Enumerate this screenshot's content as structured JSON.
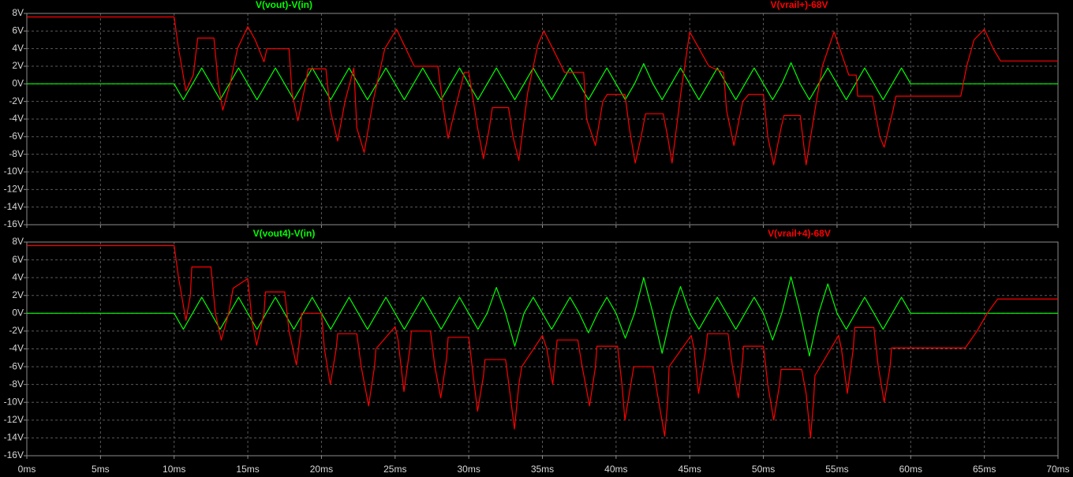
{
  "chart_data": [
    {
      "type": "line",
      "xlim": [
        0,
        70
      ],
      "ylim": [
        -16,
        8
      ],
      "xticks": [
        0,
        5,
        10,
        15,
        20,
        25,
        30,
        35,
        40,
        45,
        50,
        55,
        60,
        65,
        70
      ],
      "yticks": [
        {
          "value": 8,
          "label": "8V"
        },
        {
          "value": 6,
          "label": "6V"
        },
        {
          "value": 4,
          "label": "4V"
        },
        {
          "value": 2,
          "label": "2V"
        },
        {
          "value": 0,
          "label": "0V"
        },
        {
          "value": -2,
          "label": "-2V"
        },
        {
          "value": -4,
          "label": "-4V"
        },
        {
          "value": -6,
          "label": "-6V"
        },
        {
          "value": -8,
          "label": "-8V"
        },
        {
          "value": -10,
          "label": "-10V"
        },
        {
          "value": -12,
          "label": "-12V"
        },
        {
          "value": -14,
          "label": "-14V"
        },
        {
          "value": -16,
          "label": "-16V"
        }
      ],
      "grid": true,
      "series": [
        {
          "name": "V(vout)-V(in)",
          "color": "#00ff00",
          "x": [
            0,
            10,
            10.625,
            11.25,
            11.875,
            12.5,
            13.125,
            13.75,
            14.375,
            15,
            15.625,
            16.25,
            16.875,
            17.5,
            18.125,
            18.75,
            19.375,
            20,
            20.625,
            21.25,
            21.875,
            22.5,
            23.125,
            23.75,
            24.375,
            25,
            25.625,
            26.25,
            26.875,
            27.5,
            28.125,
            28.75,
            29.375,
            30,
            30.625,
            31.25,
            31.875,
            32.5,
            33.125,
            33.75,
            34.375,
            35,
            35.625,
            36.25,
            36.875,
            37.5,
            38.125,
            38.75,
            39.375,
            40,
            40.625,
            41.25,
            41.875,
            42.5,
            43.125,
            43.75,
            44.375,
            45,
            45.625,
            46.25,
            46.875,
            47.5,
            48.125,
            48.75,
            49.375,
            50,
            50.625,
            51.25,
            51.875,
            52.5,
            53.125,
            53.75,
            54.375,
            55,
            55.625,
            56.25,
            56.875,
            57.5,
            58.125,
            58.75,
            59.375,
            60,
            70
          ],
          "values": [
            0,
            0,
            -1.8,
            0,
            1.8,
            0,
            -1.8,
            0,
            1.8,
            0,
            -1.8,
            0,
            1.8,
            0,
            -1.8,
            0,
            1.8,
            0,
            -1.8,
            0,
            1.8,
            0,
            -1.8,
            0,
            1.8,
            0,
            -1.8,
            0,
            1.8,
            0,
            -1.8,
            0,
            1.8,
            0,
            -1.8,
            0,
            1.8,
            0,
            -1.8,
            0,
            1.8,
            0,
            -1.8,
            0,
            1.8,
            0,
            -1.8,
            0,
            1.8,
            0,
            -1.8,
            0,
            2.3,
            0,
            -1.8,
            0,
            1.8,
            0,
            -1.8,
            0,
            1.8,
            0,
            -1.8,
            0,
            1.8,
            0,
            -1.8,
            0,
            2.4,
            0,
            -1.8,
            0,
            1.8,
            0,
            -1.8,
            0,
            1.8,
            0,
            -1.8,
            0,
            1.8,
            0,
            0
          ]
        },
        {
          "name": "V(vrail+)-68V",
          "color": "#ff0000",
          "x": [
            0,
            10,
            10.3,
            10.8,
            11.3,
            11.6,
            12.7,
            13,
            13.3,
            13.8,
            14.3,
            15,
            15.5,
            16.1,
            16.3,
            17.8,
            18,
            18.4,
            18.8,
            19.1,
            20.3,
            20.6,
            21.1,
            21.6,
            22.2,
            22.4,
            22.9,
            23.5,
            24.3,
            25.1,
            26.3,
            27.9,
            28.3,
            28.6,
            29.2,
            29.7,
            30,
            30.6,
            31,
            31.4,
            31.6,
            32.7,
            33,
            33.4,
            34,
            34.7,
            35.1,
            36,
            36.5,
            37.8,
            38,
            38.6,
            39.1,
            39.4,
            40.6,
            40.9,
            41.3,
            41.7,
            42,
            43.2,
            43.5,
            43.8,
            44.4,
            45,
            46.3,
            47.3,
            47.5,
            48,
            48.6,
            49,
            50,
            50.3,
            50.7,
            51.2,
            51.4,
            52.5,
            52.9,
            53.5,
            54,
            54.8,
            55.8,
            56.3,
            56.4,
            57.4,
            57.9,
            58.2,
            58.8,
            59,
            63.4,
            63.8,
            64.3,
            65,
            65.6,
            66.1,
            70
          ],
          "values": [
            7.6,
            7.6,
            4,
            -0.8,
            1,
            5.2,
            5.2,
            0,
            -3,
            0,
            4,
            6.5,
            5,
            2.5,
            4,
            4,
            -1,
            -4.2,
            -1,
            1.7,
            1.7,
            -3,
            -6.5,
            -2,
            1.8,
            -5,
            -7.8,
            -2,
            4,
            6.2,
            2,
            2,
            -3,
            -6.2,
            -2,
            1.3,
            1.3,
            -5,
            -8.5,
            -5,
            -2.7,
            -2.7,
            -6,
            -8.7,
            -1,
            4.5,
            6,
            3,
            1.3,
            1.3,
            -4,
            -7,
            -2,
            -1.2,
            -1.2,
            -5,
            -9,
            -6,
            -3.4,
            -3.4,
            -6,
            -9,
            -1,
            5.9,
            2,
            1.3,
            -3,
            -7,
            -2,
            -1.2,
            -1.2,
            -6,
            -9.2,
            -5,
            -3.6,
            -3.6,
            -9.2,
            -3,
            2,
            5.9,
            1,
            1,
            -1.4,
            -1.4,
            -6,
            -7.2,
            -3,
            -1.4,
            -1.4,
            2,
            5,
            6.2,
            4,
            2.6,
            2.6
          ]
        }
      ]
    },
    {
      "type": "line",
      "xlim": [
        0,
        70
      ],
      "ylim": [
        -16,
        8
      ],
      "xticks": [
        {
          "value": 0,
          "label": "0ms"
        },
        {
          "value": 5,
          "label": "5ms"
        },
        {
          "value": 10,
          "label": "10ms"
        },
        {
          "value": 15,
          "label": "15ms"
        },
        {
          "value": 20,
          "label": "20ms"
        },
        {
          "value": 25,
          "label": "25ms"
        },
        {
          "value": 30,
          "label": "30ms"
        },
        {
          "value": 35,
          "label": "35ms"
        },
        {
          "value": 40,
          "label": "40ms"
        },
        {
          "value": 45,
          "label": "45ms"
        },
        {
          "value": 50,
          "label": "50ms"
        },
        {
          "value": 55,
          "label": "55ms"
        },
        {
          "value": 60,
          "label": "60ms"
        },
        {
          "value": 65,
          "label": "65ms"
        },
        {
          "value": 70,
          "label": "70ms"
        }
      ],
      "yticks": [
        {
          "value": 8,
          "label": "8V"
        },
        {
          "value": 6,
          "label": "6V"
        },
        {
          "value": 4,
          "label": "4V"
        },
        {
          "value": 2,
          "label": "2V"
        },
        {
          "value": 0,
          "label": "0V"
        },
        {
          "value": -2,
          "label": "-2V"
        },
        {
          "value": -4,
          "label": "-4V"
        },
        {
          "value": -6,
          "label": "-6V"
        },
        {
          "value": -8,
          "label": "-8V"
        },
        {
          "value": -10,
          "label": "-10V"
        },
        {
          "value": -12,
          "label": "-12V"
        },
        {
          "value": -14,
          "label": "-14V"
        },
        {
          "value": -16,
          "label": "-16V"
        }
      ],
      "grid": true,
      "series": [
        {
          "name": "V(vout4)-V(in)",
          "color": "#00ff00",
          "x": [
            0,
            10,
            10.625,
            11.25,
            11.875,
            12.5,
            13.125,
            13.75,
            14.375,
            15,
            15.625,
            16.25,
            16.875,
            17.5,
            18.125,
            18.75,
            19.375,
            20,
            20.625,
            21.25,
            21.875,
            22.5,
            23.125,
            23.75,
            24.375,
            25,
            25.625,
            26.25,
            26.875,
            27.5,
            28.125,
            28.75,
            29.375,
            30,
            30.625,
            31.25,
            31.875,
            32.5,
            33.125,
            33.75,
            34.375,
            35,
            35.625,
            36.25,
            36.875,
            37.5,
            38.125,
            38.75,
            39.375,
            40,
            40.625,
            41.25,
            41.875,
            42.5,
            43.125,
            43.75,
            44.375,
            45,
            45.625,
            46.25,
            46.875,
            47.5,
            48.125,
            48.75,
            49.375,
            50,
            50.625,
            51.25,
            51.875,
            52.5,
            53.125,
            53.75,
            54.375,
            55,
            55.625,
            56.25,
            56.875,
            57.5,
            58.125,
            58.75,
            59.375,
            60,
            70
          ],
          "values": [
            0,
            0,
            -1.8,
            0,
            1.8,
            0,
            -1.8,
            0,
            1.8,
            0,
            -1.8,
            0,
            1.8,
            0,
            -1.8,
            0,
            1.8,
            0,
            -1.8,
            0,
            1.8,
            0,
            -1.8,
            0,
            1.8,
            0,
            -1.8,
            0,
            1.8,
            0,
            -1.8,
            0,
            1.8,
            0,
            -1.8,
            0,
            2.9,
            0,
            -3.7,
            0,
            1.8,
            0,
            -1.8,
            0,
            1.8,
            0,
            -2.2,
            0,
            1.8,
            0,
            -2.8,
            0,
            4,
            0,
            -4.5,
            0,
            3,
            0,
            -1.8,
            0,
            1.8,
            0,
            -1.8,
            0,
            1.8,
            0,
            -3,
            0,
            4.1,
            0,
            -4.8,
            0,
            3.3,
            0,
            -1.8,
            0,
            1.8,
            0,
            -1.8,
            0,
            1.8,
            0,
            0
          ]
        },
        {
          "name": "V(vrail+4)-68V",
          "color": "#ff0000",
          "x": [
            0,
            10,
            10.3,
            10.8,
            11.1,
            11.2,
            12.5,
            12.8,
            13.2,
            13.7,
            14,
            15,
            15.3,
            15.6,
            16.1,
            16.2,
            17.5,
            17.8,
            18.3,
            18.6,
            18.65,
            20,
            20.2,
            20.6,
            21,
            21.1,
            22.4,
            22.7,
            23.2,
            23.6,
            23.7,
            25,
            25.2,
            25.6,
            26,
            26.1,
            27.4,
            27.7,
            28.1,
            28.5,
            28.6,
            30,
            30.3,
            30.6,
            31,
            31.1,
            32.5,
            32.8,
            33.1,
            33.4,
            33.6,
            35,
            35.3,
            35.7,
            36,
            37.4,
            37.7,
            38.2,
            38.6,
            38.7,
            40.1,
            40.4,
            40.6,
            41,
            41.2,
            42.5,
            42.8,
            43.3,
            43.5,
            43.6,
            45.1,
            45.3,
            45.6,
            46.1,
            46.2,
            47.6,
            47.9,
            48.3,
            48.6,
            48.65,
            50,
            50.3,
            50.7,
            51.1,
            51.2,
            52.6,
            52.9,
            53.2,
            53.4,
            53.5,
            55.1,
            55.3,
            55.7,
            56.1,
            56.2,
            57.5,
            57.8,
            58.2,
            58.6,
            58.7,
            63.7,
            64.5,
            65.2,
            65.9,
            70
          ],
          "values": [
            7.6,
            7.6,
            4,
            -0.8,
            2,
            5.2,
            5.2,
            0,
            -3,
            0,
            2.8,
            3.9,
            -1,
            -3.6,
            0,
            2.4,
            2.4,
            -2,
            -5.8,
            -2,
            0,
            0,
            -4,
            -8,
            -4,
            -2.3,
            -2.3,
            -6,
            -10.4,
            -6,
            -4,
            -1.5,
            -3,
            -8.8,
            -4,
            -2,
            -2,
            -6,
            -9.5,
            -5,
            -2.7,
            -2.7,
            -7,
            -11,
            -7,
            -5.2,
            -5.2,
            -9,
            -13,
            -8,
            -6,
            -2.5,
            -4,
            -8,
            -3,
            -3,
            -6,
            -10.4,
            -6,
            -3.7,
            -3.7,
            -8,
            -12,
            -8,
            -6,
            -6,
            -9,
            -13.8,
            -10,
            -6,
            -2.5,
            -4,
            -9,
            -4,
            -2.3,
            -2.3,
            -6,
            -9.5,
            -5,
            -3.7,
            -3.7,
            -8,
            -12,
            -8,
            -6.3,
            -6.3,
            -9,
            -14,
            -10,
            -7,
            -2.5,
            -4,
            -9,
            -4,
            -1.6,
            -1.6,
            -6,
            -10,
            -6,
            -3.9,
            -3.9,
            -2,
            0,
            1.6,
            1.6
          ]
        }
      ]
    }
  ]
}
